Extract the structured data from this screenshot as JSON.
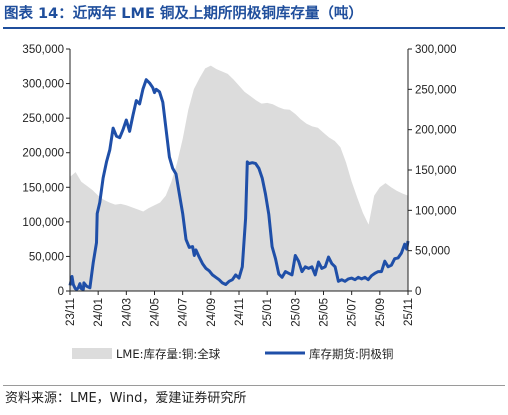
{
  "title": "图表 14：近两年 LME 铜及上期所阴极铜库存量（吨）",
  "source": "资料来源：LME，Wind，爱建证券研究所",
  "colors": {
    "area": "#dcdcdc",
    "line": "#1f4fa8",
    "title": "#1f4e9c"
  },
  "chart_data": {
    "type": "area",
    "x_ticks": [
      "23/11",
      "24/01",
      "24/03",
      "24/05",
      "24/07",
      "24/09",
      "24/11",
      "25/01",
      "25/03",
      "25/05",
      "25/07",
      "25/09",
      "25/11"
    ],
    "y_left": {
      "lim": [
        0,
        350000
      ],
      "ticks": [
        "0",
        "50,000",
        "100,000",
        "150,000",
        "200,000",
        "250,000",
        "300,000",
        "350,000"
      ]
    },
    "y_right": {
      "lim": [
        0,
        300000
      ],
      "ticks": [
        "0",
        "50,000",
        "100,000",
        "150,000",
        "200,000",
        "250,000",
        "300,000"
      ]
    },
    "grid": false,
    "legend_position": "bottom",
    "series": [
      {
        "name": "LME:库存量:铜:全球",
        "axis": "left",
        "style": "area",
        "points": [
          [
            0,
            165000
          ],
          [
            1,
            172000
          ],
          [
            2,
            158000
          ],
          [
            3,
            152000
          ],
          [
            4,
            146000
          ],
          [
            5,
            138000
          ],
          [
            6,
            132000
          ],
          [
            7,
            128000
          ],
          [
            8,
            125000
          ],
          [
            9,
            126000
          ],
          [
            10,
            124000
          ],
          [
            12,
            118000
          ],
          [
            13,
            115000
          ],
          [
            14,
            120000
          ],
          [
            15,
            124000
          ],
          [
            16,
            128000
          ],
          [
            17,
            138000
          ],
          [
            18,
            158000
          ],
          [
            19,
            185000
          ],
          [
            20,
            220000
          ],
          [
            21,
            262000
          ],
          [
            22,
            292000
          ],
          [
            23,
            308000
          ],
          [
            24,
            322000
          ],
          [
            25,
            326000
          ],
          [
            26,
            321000
          ],
          [
            28,
            314000
          ],
          [
            29,
            306000
          ],
          [
            30,
            297000
          ],
          [
            31,
            288000
          ],
          [
            32,
            282000
          ],
          [
            33,
            276000
          ],
          [
            34,
            271000
          ],
          [
            35,
            272000
          ],
          [
            36,
            270000
          ],
          [
            37,
            266000
          ],
          [
            38,
            263000
          ],
          [
            39,
            262000
          ],
          [
            40,
            256000
          ],
          [
            41,
            248000
          ],
          [
            42,
            242000
          ],
          [
            43,
            238000
          ],
          [
            44,
            236000
          ],
          [
            45,
            229000
          ],
          [
            46,
            222000
          ],
          [
            47,
            217000
          ],
          [
            48,
            208000
          ],
          [
            49,
            186000
          ],
          [
            50,
            158000
          ],
          [
            51,
            135000
          ],
          [
            52,
            113000
          ],
          [
            53,
            96000
          ],
          [
            54,
            138000
          ],
          [
            55,
            150000
          ],
          [
            56,
            156000
          ],
          [
            57,
            150000
          ],
          [
            58,
            145000
          ],
          [
            59,
            141000
          ],
          [
            60,
            138000
          ]
        ]
      },
      {
        "name": "库存期货:阴极铜",
        "axis": "right",
        "style": "line",
        "points": [
          [
            0,
            7000
          ],
          [
            0.6,
            18000
          ],
          [
            1,
            8000
          ],
          [
            1.6,
            3000
          ],
          [
            2,
            2000
          ],
          [
            2.5,
            4000
          ],
          [
            3,
            9000
          ],
          [
            3.4,
            3000
          ],
          [
            4,
            2000
          ],
          [
            4.2,
            10000
          ],
          [
            5,
            6000
          ],
          [
            6,
            4000
          ],
          [
            7,
            35000
          ],
          [
            8,
            60000
          ],
          [
            8.2,
            96000
          ],
          [
            9,
            110000
          ],
          [
            10,
            140000
          ],
          [
            11,
            160000
          ],
          [
            12,
            175000
          ],
          [
            13,
            202000
          ],
          [
            14,
            192000
          ],
          [
            15,
            190000
          ],
          [
            16,
            200000
          ],
          [
            17,
            212000
          ],
          [
            18,
            198000
          ],
          [
            19,
            218000
          ],
          [
            20,
            236000
          ],
          [
            21,
            232000
          ],
          [
            22,
            250000
          ],
          [
            23,
            262000
          ],
          [
            24,
            258000
          ],
          [
            25,
            252000
          ],
          [
            25.5,
            246000
          ],
          [
            26,
            250000
          ],
          [
            27,
            247000
          ],
          [
            28,
            234000
          ],
          [
            29,
            200000
          ],
          [
            30,
            166000
          ],
          [
            31,
            152000
          ],
          [
            32,
            145000
          ],
          [
            33,
            120000
          ],
          [
            34,
            96000
          ],
          [
            35,
            64000
          ],
          [
            36,
            54000
          ],
          [
            37,
            55000
          ],
          [
            37.5,
            44000
          ],
          [
            38,
            51000
          ],
          [
            39,
            42000
          ],
          [
            40,
            34000
          ],
          [
            41,
            28000
          ],
          [
            42,
            25000
          ],
          [
            43,
            20000
          ],
          [
            44,
            17000
          ],
          [
            45,
            14000
          ],
          [
            46,
            10000
          ],
          [
            47,
            8000
          ],
          [
            48,
            12000
          ],
          [
            49,
            14000
          ],
          [
            50,
            20000
          ],
          [
            51,
            16000
          ],
          [
            52,
            30000
          ],
          [
            53,
            90000
          ],
          [
            53.5,
            160000
          ],
          [
            54,
            158000
          ],
          [
            55,
            159000
          ],
          [
            56,
            158000
          ],
          [
            57,
            152000
          ],
          [
            58,
            140000
          ],
          [
            59,
            120000
          ],
          [
            60,
            95000
          ],
          [
            61,
            55000
          ],
          [
            62,
            40000
          ],
          [
            63,
            21000
          ],
          [
            64,
            17000
          ],
          [
            65,
            24000
          ],
          [
            66,
            22000
          ],
          [
            67,
            20000
          ],
          [
            68,
            44000
          ],
          [
            69,
            37000
          ],
          [
            70,
            24000
          ],
          [
            71,
            30000
          ],
          [
            72,
            28000
          ],
          [
            73,
            30000
          ],
          [
            74,
            20000
          ],
          [
            75,
            36000
          ],
          [
            76,
            28000
          ],
          [
            77,
            30000
          ],
          [
            78,
            42000
          ],
          [
            79,
            34000
          ],
          [
            80,
            30000
          ],
          [
            81,
            12000
          ],
          [
            82,
            14000
          ],
          [
            83,
            12000
          ],
          [
            84,
            15000
          ],
          [
            85,
            16000
          ],
          [
            86,
            14000
          ],
          [
            87,
            17000
          ],
          [
            88,
            15000
          ],
          [
            89,
            17000
          ],
          [
            90,
            14000
          ],
          [
            91,
            19000
          ],
          [
            92,
            22000
          ],
          [
            93,
            24000
          ],
          [
            94,
            24000
          ],
          [
            95,
            37000
          ],
          [
            96,
            30000
          ],
          [
            97,
            32000
          ],
          [
            98,
            40000
          ],
          [
            99,
            41000
          ],
          [
            100,
            47000
          ],
          [
            101,
            58000
          ],
          [
            101.6,
            52000
          ],
          [
            102,
            62000
          ]
        ]
      }
    ]
  }
}
